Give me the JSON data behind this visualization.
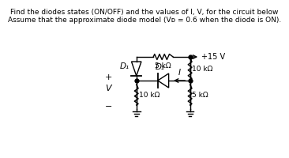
{
  "title_line1": "Find the diodes states (ON/OFF) and the values of I, V, for the circuit below",
  "title_line2": "Assume that the approximate diode model (Vᴅ = 0.6 when the diode is ON).",
  "bg_color": "#ffffff",
  "line_color": "#000000",
  "R1_label": "5 kΩ",
  "R2_label": "10 kΩ",
  "R3_label": "10 kΩ",
  "R4_label": "5 kΩ",
  "D1_label": "D₁",
  "D2_label": "D₂",
  "I_label": "I",
  "V_label": "V",
  "plus_label": "+",
  "minus_label": "−",
  "vcc_label": "+15 V"
}
